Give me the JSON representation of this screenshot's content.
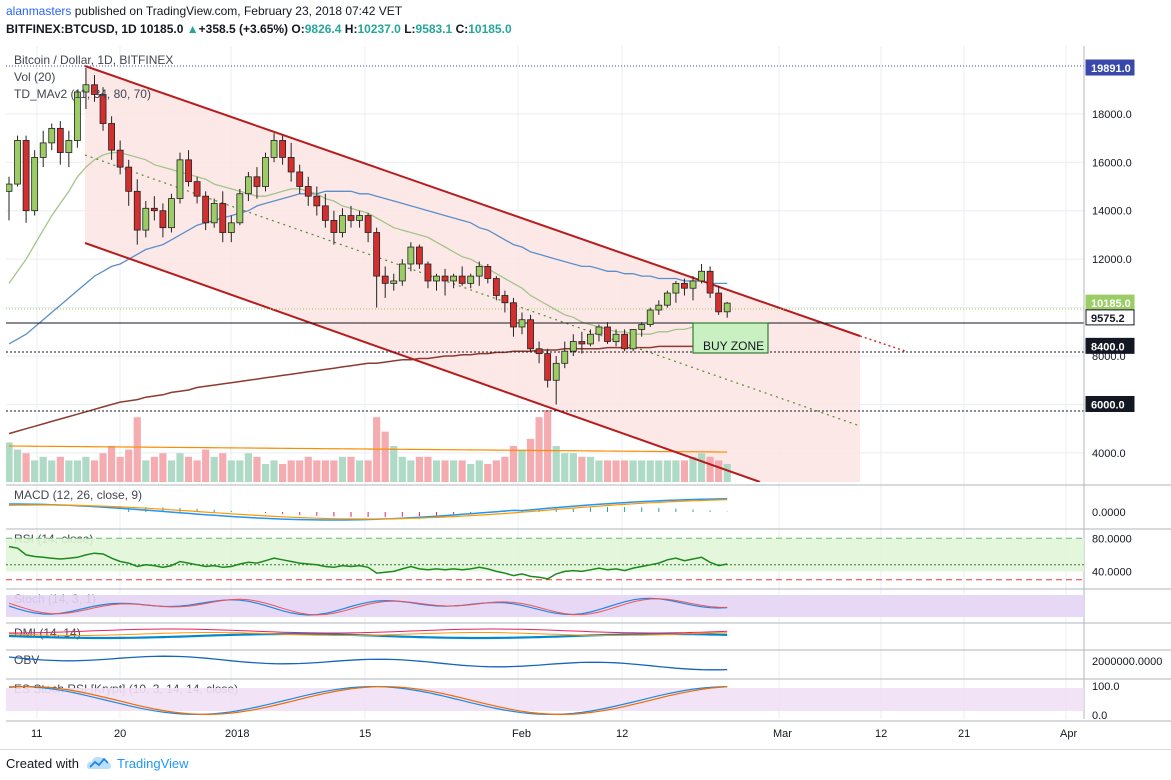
{
  "header": {
    "author": "alanmasters",
    "published_text": "published on TradingView.com, February 23, 2018 07:42 VET",
    "symbol_line": "BITFINEX:BTCUSD, 1D",
    "last": "10185.0",
    "change_glyph": "▲",
    "change": "+358.5 (+3.65%)",
    "o_label": "O:",
    "o": "9826.4",
    "h_label": "H:",
    "h": "10237.0",
    "l_label": "L:",
    "l": "9583.1",
    "c_label": "C:",
    "c": "10185.0"
  },
  "legend": {
    "title": "Bitcoin / Dollar, 1D, BITFINEX",
    "vol": "Vol (20)",
    "td": "TD_MAv2 (11, 34, 80, 70)"
  },
  "indicators": {
    "macd": "MACD (12, 26, close, 9)",
    "rsi": "RSI (14, close)",
    "stoch": "Stoch (14, 3, 1)",
    "dmi": "DMI (14, 14)",
    "obv": "OBV",
    "esrsi": "ES Stoch RSI [Krypt] (10, 3, 14, 14, close)"
  },
  "annotation": {
    "buy_zone": "BUY ZONE"
  },
  "footer": {
    "created_with": "Created with",
    "brand": "TradingView"
  },
  "colors": {
    "up": "#26a69a",
    "down": "#ef5350",
    "up_fill": "#9ccc65",
    "down_fill": "#d32f2f",
    "channel": "#b71c1c",
    "channel_fill": "#fde0e0",
    "ma_blue": "#5b8fc9",
    "ma_green": "#a5c48a",
    "ma_brown": "#8d3b2f",
    "axis": "#131722"
  },
  "chart_data": [
    {
      "type": "candlestick",
      "title": "Bitcoin / Dollar, 1D, BITFINEX",
      "x_tick_labels": [
        "11",
        "20",
        "2018",
        "15",
        "Feb",
        "12",
        "Mar",
        "12",
        "21",
        "Apr"
      ],
      "y_tick_labels": [
        "4000.0",
        "6000.0",
        "8000.0",
        "12000.0",
        "14000.0",
        "16000.0",
        "18000.0"
      ],
      "price_tags": [
        "19891.0",
        "10185.0",
        "9575.2",
        "8400.0",
        "6000.0"
      ],
      "ylim": [
        2800,
        20800
      ],
      "ohlc": [
        [
          14800,
          15400,
          13600,
          15100
        ],
        [
          15100,
          17100,
          15000,
          16900
        ],
        [
          16900,
          17100,
          13500,
          14000
        ],
        [
          14000,
          16500,
          13800,
          16200
        ],
        [
          16200,
          17300,
          15800,
          16800
        ],
        [
          16800,
          17600,
          16500,
          17400
        ],
        [
          17400,
          17700,
          15900,
          16400
        ],
        [
          16400,
          17300,
          15800,
          16900
        ],
        [
          16900,
          19000,
          16600,
          18900
        ],
        [
          18900,
          19891,
          18200,
          19200
        ],
        [
          19200,
          19600,
          18500,
          18800
        ],
        [
          18800,
          19100,
          17300,
          17600
        ],
        [
          17600,
          17900,
          16100,
          16500
        ],
        [
          16500,
          16900,
          15500,
          15800
        ],
        [
          15800,
          16100,
          14200,
          14800
        ],
        [
          14800,
          15300,
          12600,
          13200
        ],
        [
          13200,
          14400,
          12900,
          14100
        ],
        [
          14100,
          14600,
          13600,
          14000
        ],
        [
          14000,
          14300,
          12900,
          13300
        ],
        [
          13300,
          14700,
          13100,
          14500
        ],
        [
          14500,
          16400,
          14300,
          16100
        ],
        [
          16100,
          16500,
          15000,
          15200
        ],
        [
          15200,
          15400,
          14300,
          14600
        ],
        [
          14600,
          14800,
          13200,
          13500
        ],
        [
          13500,
          14500,
          13300,
          14300
        ],
        [
          14300,
          14800,
          12700,
          13100
        ],
        [
          13100,
          13800,
          12700,
          13500
        ],
        [
          13500,
          14900,
          13400,
          14700
        ],
        [
          14700,
          15600,
          14400,
          15400
        ],
        [
          15400,
          15800,
          14500,
          15000
        ],
        [
          15000,
          16400,
          14800,
          16200
        ],
        [
          16200,
          17200,
          16000,
          16900
        ],
        [
          16900,
          17100,
          15900,
          16200
        ],
        [
          16200,
          16800,
          15200,
          15600
        ],
        [
          15600,
          15900,
          14700,
          15000
        ],
        [
          15000,
          15400,
          14200,
          14600
        ],
        [
          14600,
          15000,
          13800,
          14200
        ],
        [
          14200,
          14700,
          13300,
          13600
        ],
        [
          13600,
          14000,
          12600,
          13100
        ],
        [
          13100,
          14100,
          12900,
          13800
        ],
        [
          13800,
          14200,
          13300,
          13600
        ],
        [
          13600,
          14000,
          13300,
          13800
        ],
        [
          13800,
          13900,
          12700,
          13100
        ],
        [
          13100,
          13300,
          10000,
          11300
        ],
        [
          11300,
          11700,
          10400,
          11000
        ],
        [
          11000,
          11400,
          10700,
          11100
        ],
        [
          11100,
          12000,
          10900,
          11800
        ],
        [
          11800,
          12700,
          11500,
          12500
        ],
        [
          12500,
          12600,
          11600,
          11800
        ],
        [
          11800,
          11900,
          10800,
          11100
        ],
        [
          11100,
          11400,
          10700,
          11300
        ],
        [
          11300,
          11600,
          10500,
          11100
        ],
        [
          11100,
          11400,
          10800,
          11300
        ],
        [
          11300,
          11700,
          10900,
          11000
        ],
        [
          11000,
          11400,
          10800,
          11300
        ],
        [
          11300,
          11900,
          10900,
          11700
        ],
        [
          11700,
          11800,
          11000,
          11200
        ],
        [
          11200,
          11300,
          10300,
          10500
        ],
        [
          10500,
          10700,
          9800,
          10200
        ],
        [
          10200,
          10400,
          8800,
          9200
        ],
        [
          9200,
          9800,
          8900,
          9500
        ],
        [
          9500,
          9700,
          8200,
          8300
        ],
        [
          8300,
          8600,
          7700,
          8100
        ],
        [
          8100,
          8300,
          6700,
          7000
        ],
        [
          7000,
          8000,
          6000,
          7700
        ],
        [
          7700,
          8600,
          7500,
          8200
        ],
        [
          8200,
          8900,
          8000,
          8600
        ],
        [
          8600,
          9000,
          8100,
          8500
        ],
        [
          8500,
          9100,
          8400,
          8900
        ],
        [
          8900,
          9300,
          8600,
          9200
        ],
        [
          9200,
          9400,
          8500,
          8600
        ],
        [
          8600,
          9100,
          8400,
          8900
        ],
        [
          8900,
          9100,
          8200,
          8300
        ],
        [
          8300,
          9100,
          8200,
          9100
        ],
        [
          9100,
          9400,
          8800,
          9300
        ],
        [
          9300,
          10000,
          9200,
          9900
        ],
        [
          9900,
          10300,
          9700,
          10100
        ],
        [
          10100,
          10700,
          10000,
          10600
        ],
        [
          10600,
          11100,
          10200,
          11000
        ],
        [
          11000,
          11200,
          10500,
          10800
        ],
        [
          10800,
          11300,
          10300,
          11100
        ],
        [
          11100,
          11800,
          11000,
          11500
        ],
        [
          11500,
          11700,
          10400,
          10600
        ],
        [
          10600,
          10900,
          9700,
          9826
        ],
        [
          9826,
          10237,
          9583,
          10185
        ]
      ],
      "volume_up": [
        true,
        true,
        false,
        true,
        true,
        true,
        false,
        true,
        true,
        true,
        false,
        false,
        false,
        false,
        false,
        false,
        true,
        false,
        false,
        true,
        true,
        false,
        false,
        false,
        true,
        false,
        true,
        true,
        true,
        false,
        true,
        true,
        false,
        false,
        false,
        false,
        false,
        false,
        false,
        true,
        false,
        true,
        false,
        false,
        false,
        true,
        true,
        true,
        false,
        false,
        true,
        false,
        true,
        false,
        true,
        true,
        false,
        false,
        false,
        false,
        true,
        false,
        false,
        false,
        true,
        true,
        true,
        false,
        true,
        true,
        false,
        false,
        false,
        true,
        true,
        true,
        true,
        true,
        true,
        false,
        true,
        true,
        false,
        false,
        true
      ],
      "volume_h": [
        0.55,
        0.45,
        0.4,
        0.3,
        0.35,
        0.3,
        0.35,
        0.3,
        0.3,
        0.35,
        0.3,
        0.4,
        0.5,
        0.35,
        0.45,
        0.9,
        0.3,
        0.35,
        0.4,
        0.3,
        0.4,
        0.35,
        0.3,
        0.45,
        0.35,
        0.4,
        0.3,
        0.3,
        0.4,
        0.35,
        0.25,
        0.3,
        0.25,
        0.3,
        0.3,
        0.35,
        0.3,
        0.3,
        0.3,
        0.35,
        0.35,
        0.3,
        0.3,
        0.9,
        0.7,
        0.5,
        0.35,
        0.3,
        0.35,
        0.35,
        0.3,
        0.3,
        0.3,
        0.3,
        0.25,
        0.3,
        0.25,
        0.3,
        0.35,
        0.5,
        0.45,
        0.6,
        0.9,
        1.0,
        0.5,
        0.4,
        0.4,
        0.35,
        0.35,
        0.3,
        0.3,
        0.3,
        0.3,
        0.3,
        0.3,
        0.3,
        0.3,
        0.3,
        0.3,
        0.3,
        0.35,
        0.4,
        0.35,
        0.3,
        0.25
      ],
      "series": [
        {
          "name": "MA blue",
          "values": [
            8500,
            8700,
            8900,
            9200,
            9500,
            9800,
            10100,
            10400,
            10700,
            11000,
            11300,
            11500,
            11700,
            11800,
            12000,
            12200,
            12400,
            12500,
            12600,
            12800,
            13000,
            13200,
            13400,
            13500,
            13600,
            13700,
            13800,
            13900,
            14000,
            14200,
            14300,
            14400,
            14500,
            14600,
            14700,
            14700,
            14700,
            14800,
            14800,
            14800,
            14800,
            14700,
            14700,
            14600,
            14500,
            14400,
            14300,
            14200,
            14100,
            14000,
            13900,
            13800,
            13700,
            13600,
            13500,
            13300,
            13200,
            13000,
            12800,
            12600,
            12500,
            12300,
            12200,
            12100,
            12000,
            11900,
            11800,
            11700,
            11700,
            11600,
            11500,
            11500,
            11400,
            11400,
            11300,
            11300,
            11200,
            11200,
            11200,
            11100,
            11100,
            11100,
            11000,
            11000,
            11000
          ]
        },
        {
          "name": "MA green",
          "values": [
            11000,
            11500,
            12000,
            12600,
            13200,
            13800,
            14300,
            14800,
            15400,
            15800,
            16100,
            16300,
            16400,
            16400,
            16300,
            16200,
            16100,
            15900,
            15800,
            15700,
            15600,
            15500,
            15400,
            15300,
            15100,
            15000,
            14900,
            14800,
            14700,
            14600,
            14600,
            14700,
            14800,
            14900,
            14900,
            14800,
            14700,
            14500,
            14400,
            14200,
            14100,
            14000,
            13900,
            13700,
            13500,
            13300,
            13200,
            13100,
            13000,
            12900,
            12700,
            12500,
            12300,
            12100,
            12000,
            11800,
            11600,
            11400,
            11200,
            11000,
            10800,
            10500,
            10300,
            10100,
            9900,
            9700,
            9600,
            9400,
            9300,
            9200,
            9100,
            9000,
            9000,
            8900,
            8900,
            8900,
            9000,
            9000,
            9100,
            9100,
            9200,
            9200,
            9200,
            9300,
            9300
          ]
        },
        {
          "name": "MA brown",
          "values": [
            4800,
            4900,
            5000,
            5100,
            5200,
            5300,
            5400,
            5500,
            5600,
            5700,
            5800,
            5900,
            6000,
            6100,
            6150,
            6200,
            6300,
            6350,
            6400,
            6500,
            6550,
            6600,
            6700,
            6750,
            6800,
            6850,
            6900,
            6950,
            7000,
            7050,
            7100,
            7150,
            7200,
            7250,
            7300,
            7350,
            7400,
            7450,
            7500,
            7550,
            7600,
            7650,
            7700,
            7700,
            7750,
            7800,
            7850,
            7850,
            7900,
            7900,
            7950,
            8000,
            8000,
            8050,
            8050,
            8100,
            8100,
            8150,
            8150,
            8200,
            8200,
            8200,
            8250,
            8250,
            8250,
            8300,
            8300,
            8300,
            8300,
            8300,
            8350,
            8350,
            8350,
            8350,
            8350,
            8350,
            8400,
            8400,
            8400,
            8400,
            8400,
            8400,
            8400,
            8400,
            8400
          ]
        }
      ]
    },
    {
      "type": "line",
      "title": "MACD (12, 26, close, 9)",
      "y_tick_labels": [
        "0.0000"
      ]
    },
    {
      "type": "line",
      "title": "RSI (14, close)",
      "y_tick_labels": [
        "80.0000",
        "40.0000"
      ],
      "values": [
        70,
        68,
        60,
        58,
        57,
        56,
        55,
        56,
        57,
        60,
        62,
        61,
        56,
        52,
        50,
        46,
        48,
        47,
        45,
        47,
        52,
        50,
        48,
        46,
        47,
        45,
        46,
        49,
        51,
        50,
        53,
        56,
        54,
        52,
        50,
        49,
        48,
        46,
        45,
        47,
        46,
        47,
        45,
        38,
        39,
        40,
        43,
        46,
        43,
        42,
        43,
        42,
        43,
        42,
        43,
        45,
        43,
        40,
        38,
        35,
        37,
        34,
        33,
        31,
        37,
        40,
        41,
        40,
        42,
        44,
        42,
        43,
        41,
        44,
        46,
        48,
        50,
        54,
        56,
        53,
        55,
        57,
        51,
        47,
        49
      ]
    },
    {
      "type": "line",
      "title": "Stoch (14, 3, 1)"
    },
    {
      "type": "line",
      "title": "DMI (14, 14)"
    },
    {
      "type": "line",
      "title": "OBV",
      "y_tick_labels": [
        "2000000.0000"
      ]
    },
    {
      "type": "line",
      "title": "ES Stoch RSI [Krypt] (10, 3, 14, 14, close)",
      "y_tick_labels": [
        "100.0",
        "0.0"
      ]
    }
  ]
}
